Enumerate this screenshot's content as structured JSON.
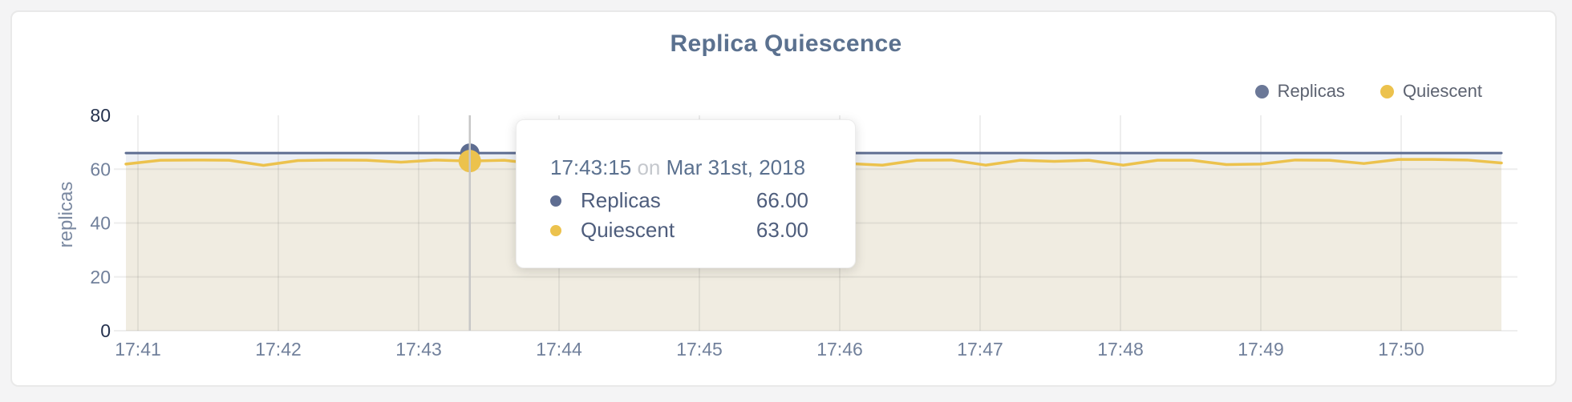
{
  "header": {
    "title": "Replica Quiescence"
  },
  "legend": [
    {
      "label": "Replicas",
      "color": "#6b7897"
    },
    {
      "label": "Quiescent",
      "color": "#ecc24d"
    }
  ],
  "y_axis_title": "replicas",
  "tooltip": {
    "time": "17:43:15",
    "connector": "on",
    "date": "Mar 31st, 2018",
    "rows": [
      {
        "label": "Replicas",
        "value": "66.00",
        "color": "#5e6d91"
      },
      {
        "label": "Quiescent",
        "value": "63.00",
        "color": "#ecc24d"
      }
    ]
  },
  "chart_data": {
    "type": "line",
    "title": "Replica Quiescence",
    "xlabel": "",
    "ylabel": "replicas",
    "ylim": [
      0,
      80
    ],
    "yticks": [
      0,
      20,
      40,
      60,
      80
    ],
    "xticks": [
      "17:41",
      "17:42",
      "17:43",
      "17:44",
      "17:45",
      "17:46",
      "17:47",
      "17:48",
      "17:49",
      "17:50"
    ],
    "x_interval_seconds": 15,
    "grid": true,
    "legend_position": "top-right",
    "hover_index": 10,
    "hover_time": "17:43:15",
    "hover_date": "Mar 31st, 2018",
    "series": [
      {
        "name": "Replicas",
        "color": "#5e6d91",
        "fill": "#eceff4",
        "line_width": 3,
        "marker_radius": 12,
        "values": [
          66,
          66,
          66,
          66,
          66,
          66,
          66,
          66,
          66,
          66,
          66,
          66,
          66,
          66,
          66,
          66,
          66,
          66,
          66,
          66,
          66,
          66,
          66,
          66,
          66,
          66,
          66,
          66,
          66,
          66,
          66,
          66,
          66,
          66,
          66,
          66,
          66,
          66,
          66,
          66,
          66
        ]
      },
      {
        "name": "Quiescent",
        "color": "#ecc24d",
        "fill": "#f0ece1",
        "line_width": 3.5,
        "marker_radius": 14,
        "values": [
          61.9,
          63.3,
          63.4,
          63.3,
          61.4,
          63.2,
          63.4,
          63.3,
          62.6,
          63.4,
          63.0,
          63.3,
          62.0,
          63.2,
          63.4,
          62.4,
          63.3,
          63.3,
          61.8,
          63.2,
          63.4,
          62.1,
          61.5,
          63.3,
          63.4,
          61.5,
          63.3,
          62.9,
          63.3,
          61.5,
          63.3,
          63.3,
          61.7,
          61.9,
          63.4,
          63.3,
          62.1,
          63.6,
          63.6,
          63.4,
          62.3
        ]
      }
    ],
    "colors": {
      "axis_major": "#25324e",
      "axis_minor": "#71809b",
      "grid_line": "rgba(90,90,90,0.10)",
      "crosshair": "#c7c7c7"
    }
  }
}
